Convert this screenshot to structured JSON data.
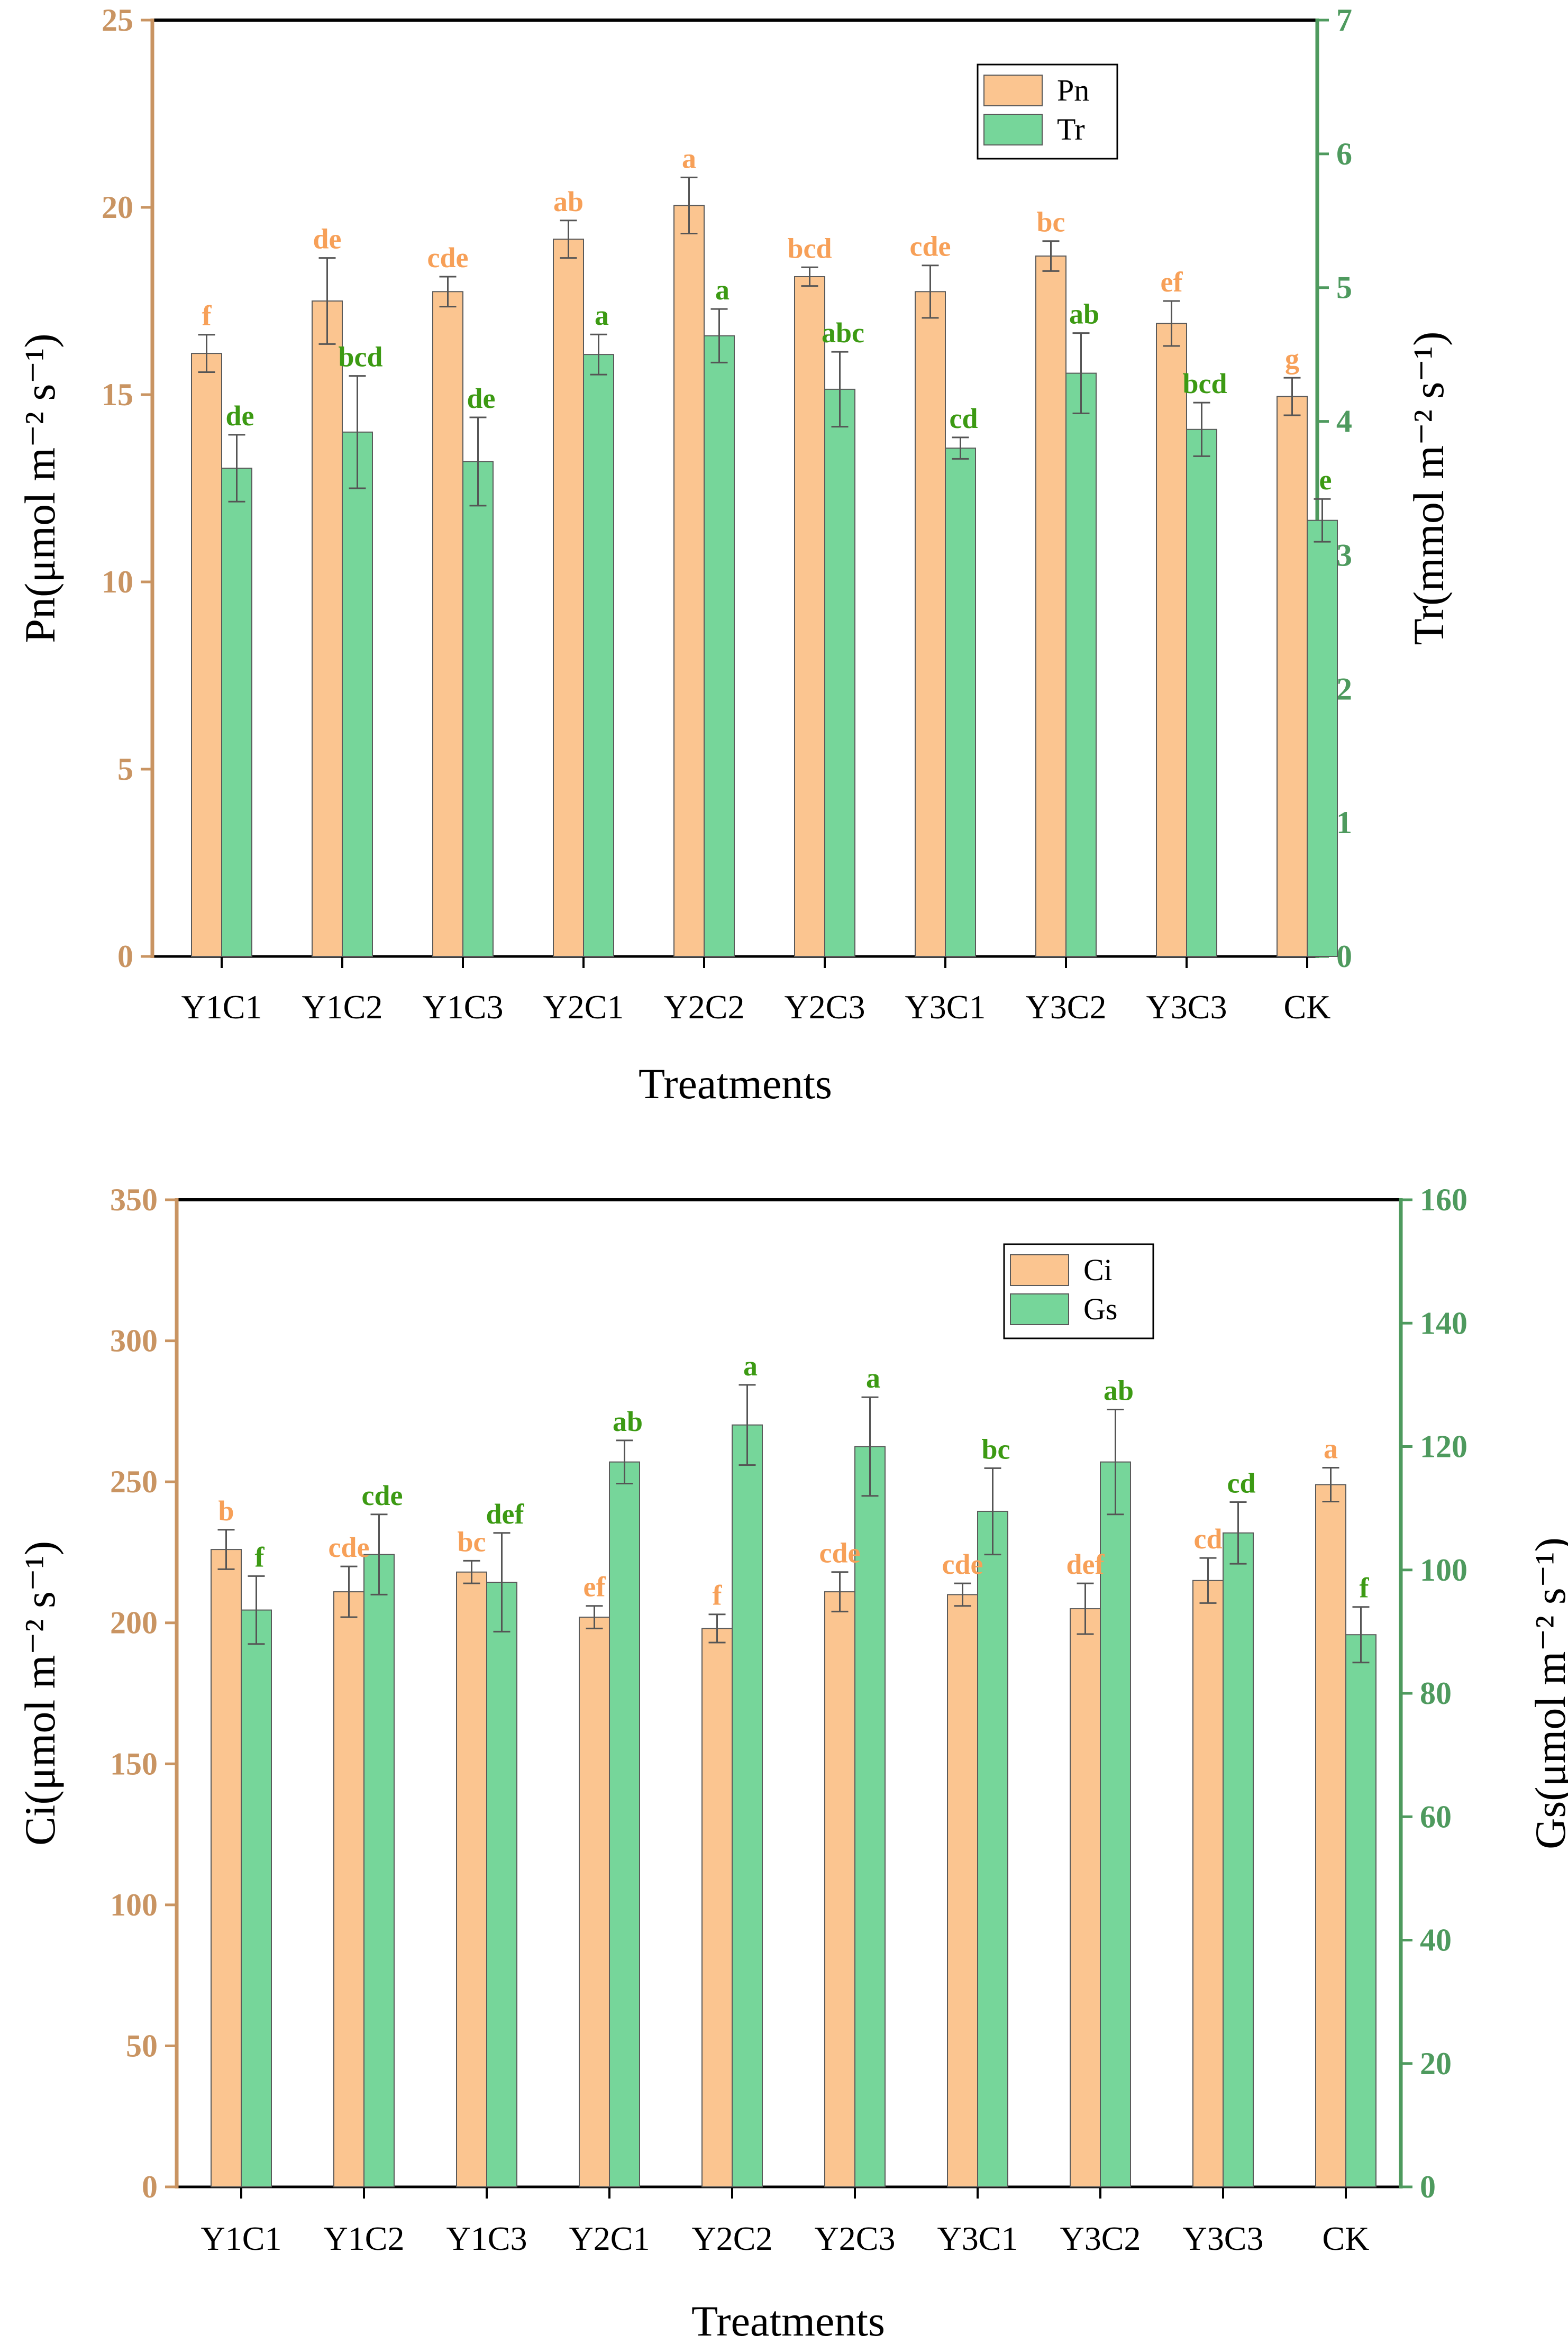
{
  "colors": {
    "primary_axis": "#c99462",
    "secondary_axis": "#4e9a5e",
    "primary_bar": "#fbc590",
    "secondary_bar": "#76d69a",
    "primary_letter": "#f7a058",
    "secondary_letter": "#3c9a13",
    "bar_edge": "#5a5a5a",
    "errorbar": "#555555"
  },
  "chart_data": [
    {
      "type": "bar",
      "categories": [
        "Y1C1",
        "Y1C2",
        "Y1C3",
        "Y2C1",
        "Y2C2",
        "Y2C3",
        "Y3C1",
        "Y3C2",
        "Y3C3",
        "CK"
      ],
      "xlabel": "Treatments",
      "ylabel_left": "Pn(μmol m⁻² s⁻¹)",
      "ylabel_right": "Tr(mmol m⁻² s⁻¹)",
      "ylim_left": [
        0,
        25
      ],
      "yticks_left": [
        0,
        5,
        10,
        15,
        20,
        25
      ],
      "ylim_right": [
        0,
        7
      ],
      "yticks_right": [
        0,
        1,
        2,
        3,
        4,
        5,
        6,
        7
      ],
      "legend_position": "top-right",
      "series": [
        {
          "name": "Pn",
          "axis": "left",
          "values": [
            16.1,
            17.5,
            17.75,
            19.15,
            20.05,
            18.15,
            17.75,
            18.7,
            16.9,
            14.95
          ],
          "errors": [
            0.5,
            1.15,
            0.4,
            0.5,
            0.75,
            0.25,
            0.7,
            0.4,
            0.6,
            0.5
          ],
          "letters": [
            "f",
            "de",
            "cde",
            "ab",
            "a",
            "bcd",
            "cde",
            "bc",
            "ef",
            "g"
          ]
        },
        {
          "name": "Tr",
          "axis": "right",
          "values": [
            3.65,
            3.92,
            3.7,
            4.5,
            4.64,
            4.24,
            3.8,
            4.36,
            3.94,
            3.26
          ],
          "errors": [
            0.25,
            0.42,
            0.33,
            0.15,
            0.2,
            0.28,
            0.08,
            0.3,
            0.2,
            0.16
          ],
          "letters": [
            "de",
            "bcd",
            "de",
            "a",
            "a",
            "abc",
            "cd",
            "ab",
            "bcd",
            "e"
          ]
        }
      ]
    },
    {
      "type": "bar",
      "categories": [
        "Y1C1",
        "Y1C2",
        "Y1C3",
        "Y2C1",
        "Y2C2",
        "Y2C3",
        "Y3C1",
        "Y3C2",
        "Y3C3",
        "CK"
      ],
      "xlabel": "Treatments",
      "ylabel_left": "Ci(μmol m⁻² s⁻¹)",
      "ylabel_right": "Gs(μmol m⁻² s⁻¹)",
      "ylim_left": [
        0,
        350
      ],
      "yticks_left": [
        0,
        50,
        100,
        150,
        200,
        250,
        300,
        350
      ],
      "ylim_right": [
        0,
        160
      ],
      "yticks_right": [
        0,
        20,
        40,
        60,
        80,
        100,
        120,
        140,
        160
      ],
      "legend_position": "top-right",
      "series": [
        {
          "name": "Ci",
          "axis": "left",
          "values": [
            226,
            211,
            218,
            202,
            198,
            211,
            210,
            205,
            215,
            249
          ],
          "errors": [
            7,
            9,
            4,
            4,
            5,
            7,
            4,
            9,
            8,
            6
          ],
          "letters": [
            "b",
            "cde",
            "bc",
            "ef",
            "f",
            "cde",
            "cde",
            "def",
            "cd",
            "a"
          ]
        },
        {
          "name": "Gs",
          "axis": "right",
          "values": [
            93.5,
            102.5,
            98,
            117.5,
            123.5,
            120,
            109.5,
            117.5,
            106,
            89.5
          ],
          "errors": [
            5.5,
            6.5,
            8,
            3.5,
            6.5,
            8,
            7,
            8.5,
            5,
            4.5
          ],
          "letters": [
            "f",
            "cde",
            "def",
            "ab",
            "a",
            "a",
            "bc",
            "ab",
            "cd",
            "f"
          ]
        }
      ]
    }
  ]
}
